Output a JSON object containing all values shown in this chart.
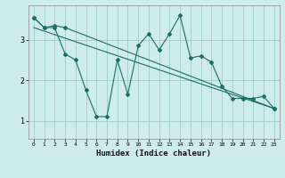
{
  "xlabel": "Humidex (Indice chaleur)",
  "background_color": "#ceecea",
  "line_color": "#1a6e65",
  "grid_color": "#a0ccc8",
  "xlim": [
    -0.5,
    23.5
  ],
  "ylim": [
    0.55,
    3.85
  ],
  "yticks": [
    1,
    2,
    3
  ],
  "xticks": [
    0,
    1,
    2,
    3,
    4,
    5,
    6,
    7,
    8,
    9,
    10,
    11,
    12,
    13,
    14,
    15,
    16,
    17,
    18,
    19,
    20,
    21,
    22,
    23
  ],
  "series1_x": [
    0,
    1,
    2,
    3,
    4,
    5,
    6,
    7,
    8,
    9,
    10,
    11,
    12,
    13,
    14,
    15,
    16,
    17,
    18,
    19,
    20,
    21,
    22,
    23
  ],
  "series1_y": [
    3.55,
    3.3,
    3.3,
    2.65,
    2.5,
    1.75,
    1.1,
    1.1,
    2.5,
    1.65,
    2.85,
    3.15,
    2.75,
    3.15,
    3.6,
    2.55,
    2.6,
    2.45,
    1.85,
    1.55,
    1.55,
    1.55,
    1.6,
    1.3
  ],
  "series2_x": [
    0,
    1,
    2,
    3,
    23
  ],
  "series2_y": [
    3.55,
    3.3,
    3.35,
    3.3,
    1.3
  ],
  "trend_x": [
    0,
    23
  ],
  "trend_y": [
    3.3,
    1.3
  ]
}
